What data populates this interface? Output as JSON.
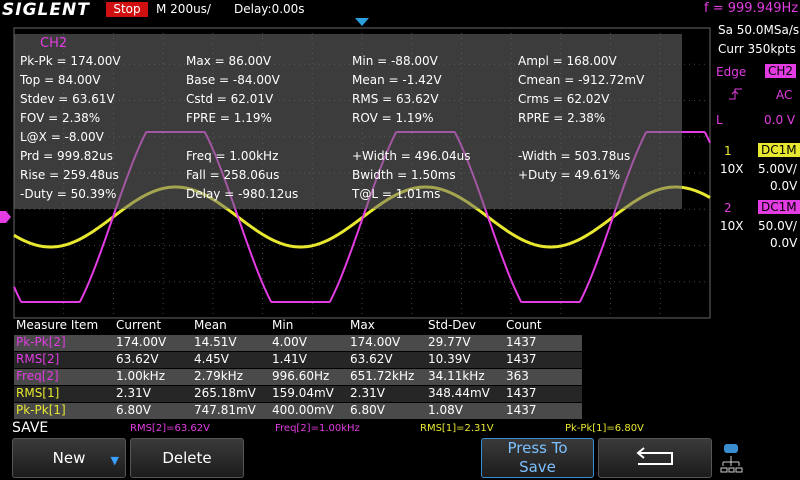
{
  "header": {
    "brand": "SIGLENT",
    "status": "Stop",
    "timebase": "M 200us/",
    "delay": "Delay:0.00s",
    "frequency": "f = 999.949Hz"
  },
  "acquisition": {
    "sample_rate": "Sa 50.0MSa/s",
    "memory": "Curr 350kpts"
  },
  "trigger": {
    "type": "Edge",
    "source": "CH2",
    "coupling": "AC",
    "level_label": "L",
    "level": "0.0 V"
  },
  "channels": [
    {
      "number": "1",
      "coupling": "DC1M",
      "probe": "10X",
      "scale": "5.00V/",
      "offset": "0.0V"
    },
    {
      "number": "2",
      "coupling": "DC1M",
      "probe": "10X",
      "scale": "50.0V/",
      "offset": "0.0V"
    }
  ],
  "measure_panel": {
    "title": "CH2",
    "rows": [
      [
        "Pk-Pk = 174.00V",
        "Max = 86.00V",
        "Min = -88.00V",
        "Ampl = 168.00V"
      ],
      [
        "Top = 84.00V",
        "Base = -84.00V",
        "Mean = -1.42V",
        "Cmean = -912.72mV"
      ],
      [
        "Stdev = 63.61V",
        "Cstd = 62.01V",
        "RMS = 63.62V",
        "Crms = 62.02V"
      ],
      [
        "FOV = 2.38%",
        "FPRE = 1.19%",
        "ROV = 1.19%",
        "RPRE = 2.38%"
      ],
      [
        "L@X = -8.00V"
      ],
      [
        "Prd = 999.82us",
        "Freq = 1.00kHz",
        "+Width = 496.04us",
        "-Width = 503.78us"
      ],
      [
        "Rise = 259.48us",
        "Fall = 258.06us",
        "Bwidth = 1.50ms",
        "+Duty = 49.61%"
      ],
      [
        "-Duty = 50.39%",
        "Delay = -980.12us",
        "T@L = 1.01ms"
      ]
    ]
  },
  "statistics": {
    "columns": [
      "Measure Item",
      "Current",
      "Mean",
      "Min",
      "Max",
      "Std-Dev",
      "Count"
    ],
    "rows": [
      [
        "Pk-Pk[2]",
        "174.00V",
        "14.51V",
        "4.00V",
        "174.00V",
        "29.77V",
        "1437"
      ],
      [
        "RMS[2]",
        "63.62V",
        "4.45V",
        "1.41V",
        "63.62V",
        "10.39V",
        "1437"
      ],
      [
        "Freq[2]",
        "1.00kHz",
        "2.79kHz",
        "996.60Hz",
        "651.72kHz",
        "34.11kHz",
        "363"
      ],
      [
        "RMS[1]",
        "2.31V",
        "265.18mV",
        "159.04mV",
        "2.31V",
        "348.44mV",
        "1437"
      ],
      [
        "Pk-Pk[1]",
        "6.80V",
        "747.81mV",
        "400.00mV",
        "6.80V",
        "1.08V",
        "1437"
      ]
    ]
  },
  "status_line": {
    "label": "SAVE",
    "items": [
      "RMS[2]=63.62V",
      "Freq[2]=1.00kHz",
      "RMS[1]=2.31V",
      "Pk-Pk[1]=6.80V"
    ]
  },
  "menu": {
    "buttons": [
      "New",
      "Delete",
      "Press To Save"
    ]
  }
}
